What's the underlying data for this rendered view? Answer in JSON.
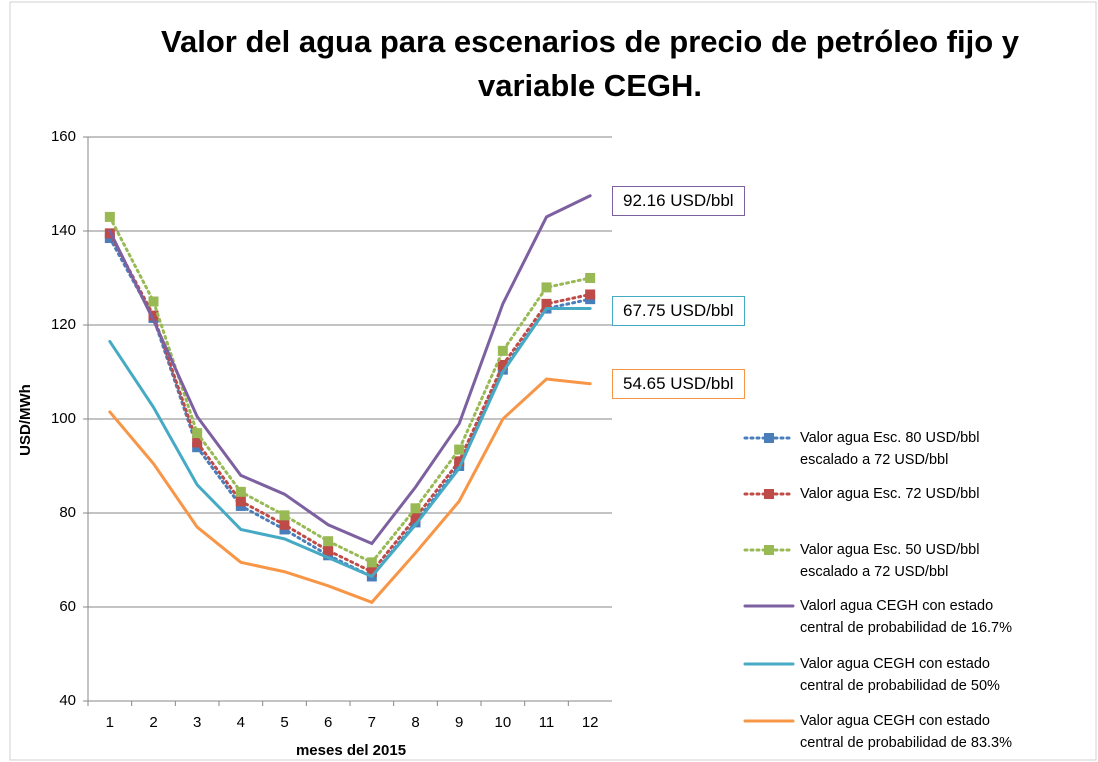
{
  "chart_data": {
    "type": "line",
    "title": "Valor del agua para escenarios de precio de petróleo fijo y variable CEGH.",
    "x_label": "meses del 2015",
    "y_label": "USD/MWh",
    "categories": [
      "1",
      "2",
      "3",
      "4",
      "5",
      "6",
      "7",
      "8",
      "9",
      "10",
      "11",
      "12"
    ],
    "ylim": [
      40,
      160
    ],
    "yticks": [
      40,
      60,
      80,
      100,
      120,
      140,
      160
    ],
    "grid": true,
    "series": [
      {
        "name": "Valor agua Esc. 80 USD/bbl escalado a 72 USD/bbl",
        "color": "#4a7ebb",
        "style": "dotted",
        "values": [
          138.5,
          121.5,
          94,
          81.5,
          76.5,
          71,
          66.5,
          78,
          90,
          110.5,
          123.5,
          125.5
        ]
      },
      {
        "name": "Valor agua Esc. 72 USD/bbl",
        "color": "#be4b48",
        "style": "dotted",
        "values": [
          139.5,
          122,
          95,
          82.5,
          77.5,
          72,
          67.5,
          79,
          91,
          111.5,
          124.5,
          126.5
        ]
      },
      {
        "name": "Valor agua Esc. 50 USD/bbl escalado a 72 USD/bbl",
        "color": "#98b954",
        "style": "dotted",
        "values": [
          143,
          125,
          97,
          84.5,
          79.5,
          74,
          69.5,
          81,
          93.5,
          114.5,
          128,
          130
        ]
      },
      {
        "name": "Valorl agua CEGH con estado central de probabilidad de 16.7%",
        "color": "#7d60a0",
        "style": "solid",
        "values": [
          140,
          121,
          100.5,
          88,
          84,
          77.5,
          73.5,
          85.5,
          99,
          124.5,
          143,
          147.5
        ]
      },
      {
        "name": "Valor agua CEGH con estado central de probabilidad de 50%",
        "color": "#46aac5",
        "style": "solid",
        "values": [
          116.5,
          102.5,
          86,
          76.5,
          74.5,
          70.5,
          66.5,
          77.5,
          89.5,
          110,
          123.5,
          123.5
        ]
      },
      {
        "name": "Valor agua CEGH con estado central de probabilidad de 83.3%",
        "color": "#f79646",
        "style": "solid",
        "values": [
          101.5,
          90.5,
          77,
          69.5,
          67.5,
          64.5,
          61,
          71.5,
          82.5,
          100,
          108.5,
          107.5
        ]
      }
    ],
    "annotations": [
      {
        "text": "92.16 USD/bbl",
        "color": "#7d60a0"
      },
      {
        "text": "67.75 USD/bbl",
        "color": "#46aac5"
      },
      {
        "text": "54.65 USD/bbl",
        "color": "#f79646"
      }
    ]
  }
}
